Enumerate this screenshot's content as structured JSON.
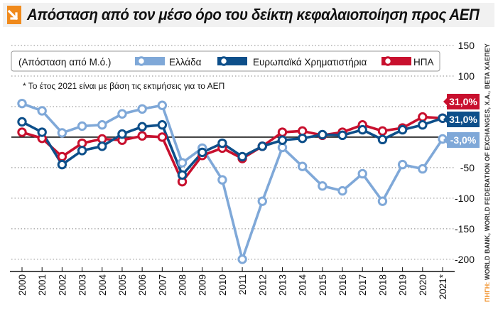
{
  "title": "Απόσταση από τον μέσο όρο του δείκτη κεφαλαιοποίηση προς ΑΕΠ",
  "source_label": "ΠΗΓΗ:",
  "source_text": "WORLD BANK, WORLD FEDERATION OF EXCHANGES, Χ.Α., BETA ΧΑΕΠΕΥ",
  "legend_title": "(Απόσταση από Μ.ό.)",
  "note": "* Το έτος 2021 είναι με βάση τις εκτιμήσεις για το ΑΕΠ",
  "colors": {
    "greece": "#7fa8d8",
    "europe": "#0d4f8a",
    "usa": "#c8102e",
    "title_accent": "#f08a1c",
    "grid": "#888888"
  },
  "chart_data": {
    "type": "line",
    "x": [
      "2000",
      "2001",
      "2002",
      "2003",
      "2004",
      "2005",
      "2006",
      "2007",
      "2008",
      "2009",
      "2010",
      "2011",
      "2012",
      "2013",
      "2014",
      "2015",
      "2016",
      "2017",
      "2018",
      "2019",
      "2020",
      "2021*"
    ],
    "series": [
      {
        "name": "Ελλάδα",
        "values": [
          55,
          43,
          7,
          18,
          20,
          38,
          46,
          52,
          -42,
          -18,
          -70,
          -200,
          -105,
          -17,
          -48,
          -80,
          -88,
          -60,
          -105,
          -45,
          -52,
          -3
        ]
      },
      {
        "name": "Ευρωπαϊκά Χρηματιστήρια",
        "values": [
          25,
          8,
          -45,
          -22,
          -15,
          5,
          17,
          20,
          -62,
          -25,
          -10,
          -32,
          -15,
          -5,
          -2,
          4,
          3,
          12,
          -4,
          12,
          20,
          31
        ]
      },
      {
        "name": "ΗΠΑ",
        "values": [
          8,
          -2,
          -32,
          -10,
          -3,
          -5,
          2,
          0,
          -73,
          -30,
          -18,
          -35,
          -15,
          8,
          10,
          3,
          8,
          20,
          10,
          15,
          33,
          31
        ]
      }
    ],
    "end_labels": [
      "31,0%",
      "31,0%",
      "-3,0%"
    ],
    "ylim": [
      -220,
      150
    ],
    "yticks": [
      150,
      100,
      50,
      0,
      -50,
      -100,
      -150,
      -200
    ],
    "ytick_labels": [
      "150",
      "100",
      "",
      "",
      "-50",
      "-100",
      "-150",
      "-200"
    ],
    "legend_placement": "top-left",
    "grid": "horizontal-dotted"
  }
}
